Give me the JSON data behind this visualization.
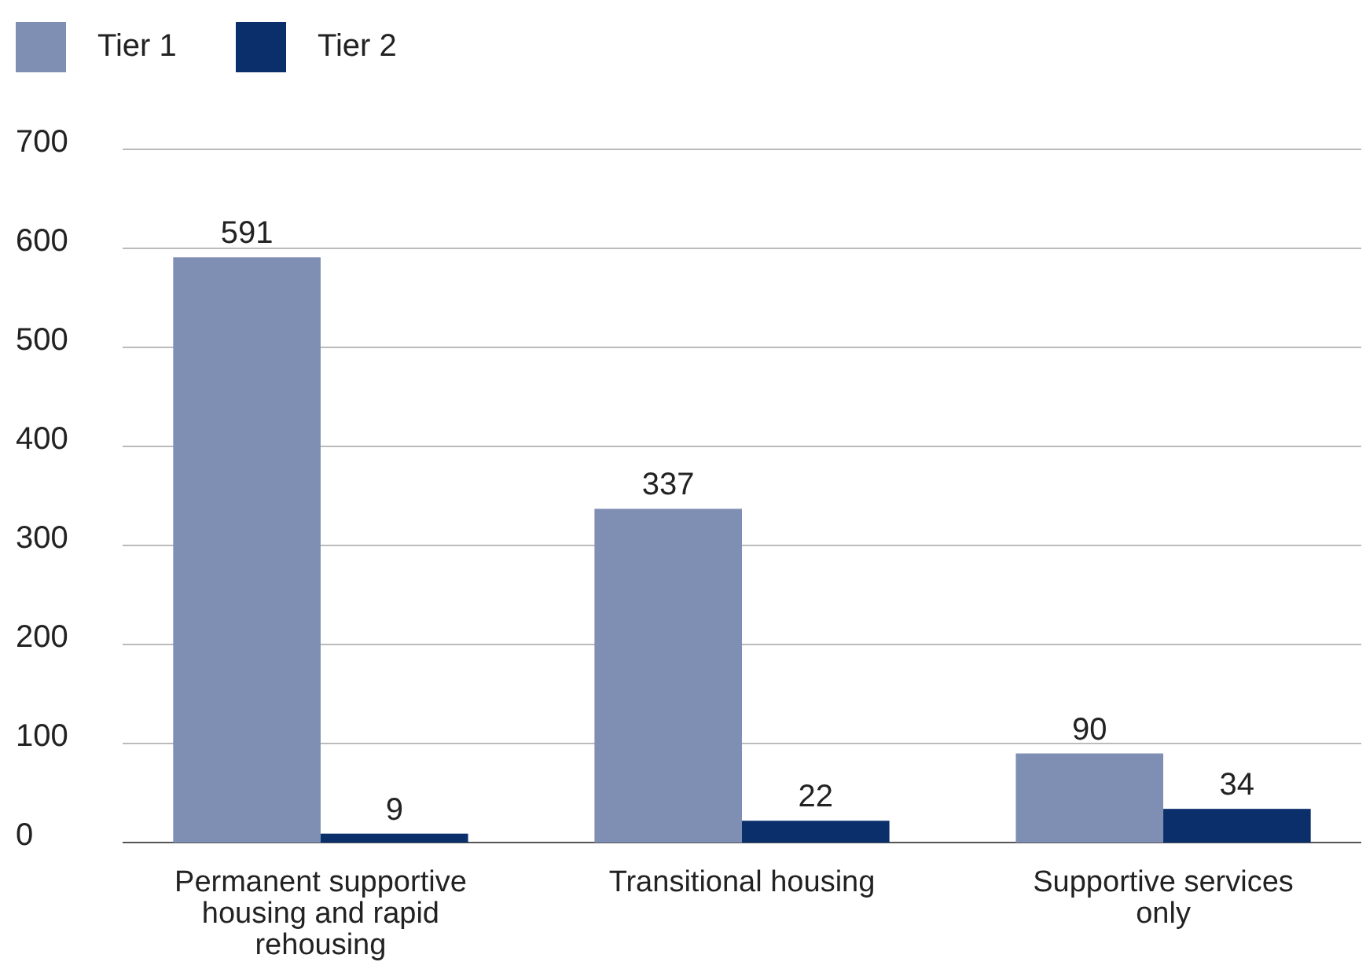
{
  "chart_data": {
    "type": "bar",
    "categories": [
      "Permanent supportive housing and rapid rehousing",
      "Transitional housing",
      "Supportive services only"
    ],
    "series": [
      {
        "name": "Tier 1",
        "color": "#7f8fb4",
        "values": [
          591,
          337,
          90
        ]
      },
      {
        "name": "Tier 2",
        "color": "#0b2f6b",
        "values": [
          9,
          22,
          34
        ]
      }
    ],
    "ylim": [
      0,
      700
    ],
    "yticks": [
      0,
      100,
      200,
      300,
      400,
      500,
      600,
      700
    ],
    "grid": "y",
    "legend": "top left",
    "data_labels": true
  }
}
